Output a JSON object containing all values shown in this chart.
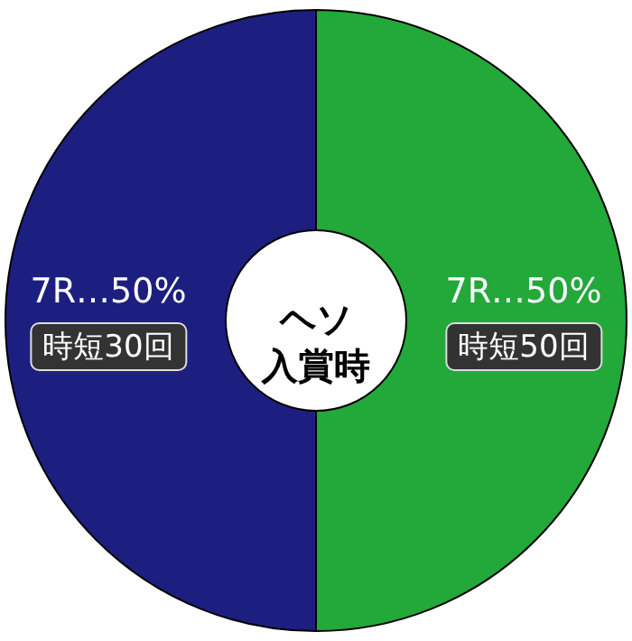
{
  "chart_data": {
    "type": "donut",
    "title": "ヘソ入賞時",
    "categories": [
      "時短50回",
      "時短30回"
    ],
    "values": [
      50,
      50
    ],
    "value_labels": [
      "7R…50%",
      "7R…50%"
    ],
    "colors": [
      "#23a83a",
      "#1d1f80"
    ]
  }
}
